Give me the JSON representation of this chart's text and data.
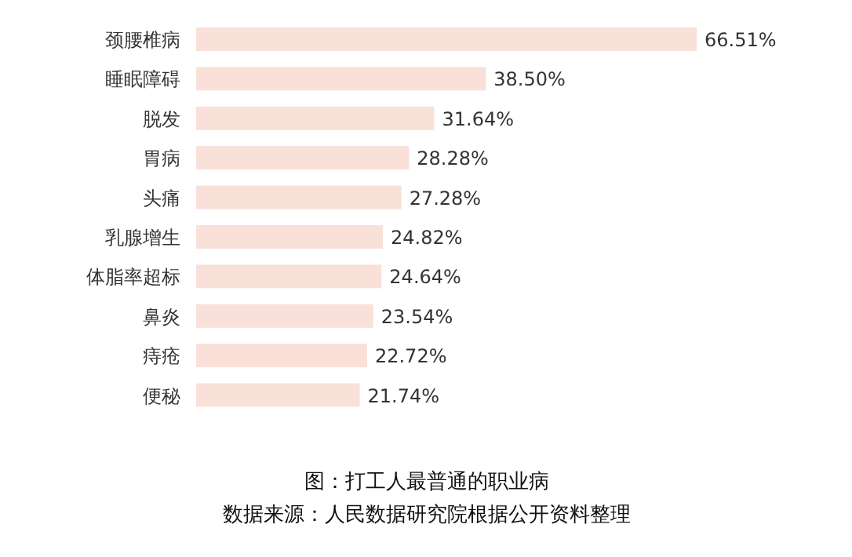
{
  "chart_data": {
    "type": "bar",
    "orientation": "horizontal",
    "categories": [
      "颈腰椎病",
      "睡眠障碍",
      "脱发",
      "胃病",
      "头痛",
      "乳腺增生",
      "体脂率超标",
      "鼻炎",
      "痔疮",
      "便秘"
    ],
    "values": [
      66.51,
      38.5,
      31.64,
      28.28,
      27.28,
      24.82,
      24.64,
      23.54,
      22.72,
      21.74
    ],
    "value_labels": [
      "66.51%",
      "38.50%",
      "31.64%",
      "28.28%",
      "27.28%",
      "24.82%",
      "24.64%",
      "23.54%",
      "22.72%",
      "21.74%"
    ],
    "color": "#f9e1da",
    "annotations": [
      "图：打工人最普通的职业病",
      "数据来源：人民数据研究院根据公开资料整理"
    ]
  }
}
